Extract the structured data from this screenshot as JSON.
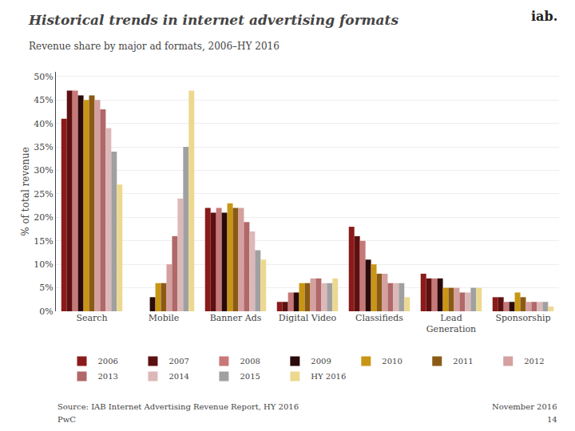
{
  "chart_data": {
    "type": "bar",
    "title": "Historical trends in internet advertising formats",
    "subtitle": "Revenue share by major ad formats, 2006–HY 2016",
    "ylabel": "% of total revenue",
    "categories": [
      "Search",
      "Mobile",
      "Banner Ads",
      "Digital Video",
      "Classifieds",
      "Lead\nGeneration",
      "Sponsorship"
    ],
    "series": [
      {
        "name": "2006",
        "color": "#8B1A1A",
        "values": [
          41,
          0,
          22,
          2,
          18,
          8,
          3
        ]
      },
      {
        "name": "2007",
        "color": "#5C1010",
        "values": [
          47,
          0,
          21,
          2,
          16,
          7,
          3
        ]
      },
      {
        "name": "2008",
        "color": "#C87878",
        "values": [
          47,
          0,
          22,
          4,
          15,
          7,
          2
        ]
      },
      {
        "name": "2009",
        "color": "#2A0A0A",
        "values": [
          46,
          3,
          21,
          4,
          11,
          7,
          2
        ]
      },
      {
        "name": "2010",
        "color": "#C89614",
        "values": [
          45,
          6,
          23,
          6,
          10,
          5,
          4
        ]
      },
      {
        "name": "2011",
        "color": "#8B5A14",
        "values": [
          46,
          6,
          22,
          6,
          8,
          5,
          3
        ]
      },
      {
        "name": "2012",
        "color": "#D4A0A0",
        "values": [
          45,
          10,
          22,
          7,
          8,
          5,
          2
        ]
      },
      {
        "name": "2013",
        "color": "#B06868",
        "values": [
          43,
          16,
          19,
          7,
          6,
          4,
          2
        ]
      },
      {
        "name": "2014",
        "color": "#DDB8B8",
        "values": [
          39,
          24,
          17,
          6,
          6,
          4,
          2
        ]
      },
      {
        "name": "2015",
        "color": "#A0A0A0",
        "values": [
          34,
          35,
          13,
          6,
          6,
          5,
          2
        ]
      },
      {
        "name": "HY 2016",
        "color": "#EDD890",
        "values": [
          27,
          47,
          11,
          7,
          3,
          5,
          1
        ]
      }
    ],
    "ylim": [
      0,
      51
    ],
    "yticks": [
      {
        "value": 0,
        "label": "0%"
      },
      {
        "value": 5,
        "label": "5%"
      },
      {
        "value": 10,
        "label": "10%"
      },
      {
        "value": 15,
        "label": "15%"
      },
      {
        "value": 20,
        "label": "20%"
      },
      {
        "value": 25,
        "label": "25%"
      },
      {
        "value": 30,
        "label": "30%"
      },
      {
        "value": 35,
        "label": "35%"
      },
      {
        "value": 40,
        "label": "40%"
      },
      {
        "value": 45,
        "label": "45%"
      },
      {
        "value": 50,
        "label": "50%"
      }
    ],
    "grid": true,
    "legend": "bottom",
    "annotations": [
      "Source: IAB Internet Advertising Revenue Report, HY 2016",
      "PwC",
      "November 2016",
      "14",
      "iab."
    ]
  }
}
